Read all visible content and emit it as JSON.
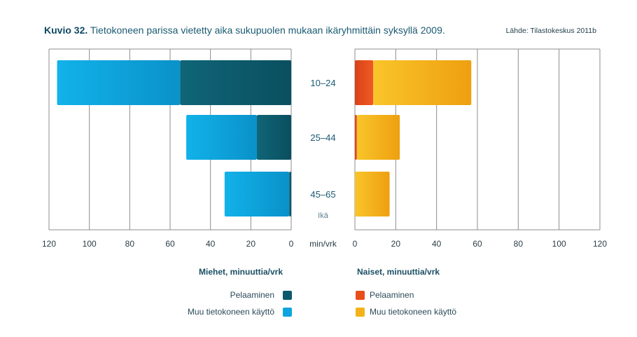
{
  "header": {
    "figure_label": "Kuvio 32.",
    "figure_title": "Tietokoneen parissa vietetty aika sukupuolen mukaan ikäryhmittäin syksyllä 2009.",
    "source": "Lähde: Tilastokeskus 2011b"
  },
  "chart_data": {
    "type": "bar",
    "orientation": "horizontal",
    "layout": "back-to-back stacked",
    "categories": [
      "10–24",
      "25–44",
      "45–65"
    ],
    "category_axis_label": "Ikä",
    "unit_label": "min/vrk",
    "xlim": [
      0,
      120
    ],
    "x_ticks": [
      120,
      100,
      80,
      60,
      40,
      20,
      0
    ],
    "grid": true,
    "panels": [
      {
        "name": "Miehet, minuuttia/vrk",
        "direction": "left",
        "series": [
          {
            "name": "Pelaaminen",
            "values": [
              55,
              17,
              1
            ],
            "color": "#0d5a6e"
          },
          {
            "name": "Muu tietokoneen käyttö",
            "values": [
              61,
              35,
              32
            ],
            "color": "#0ea5de"
          }
        ]
      },
      {
        "name": "Naiset, minuuttia/vrk",
        "direction": "right",
        "series": [
          {
            "name": "Pelaaminen",
            "values": [
              9,
              1,
              0
            ],
            "color": "#e84e1b"
          },
          {
            "name": "Muu tietokoneen käyttö",
            "values": [
              48,
              21,
              17
            ],
            "color": "#f5b21b"
          }
        ]
      }
    ],
    "legend_placement": "bottom"
  }
}
